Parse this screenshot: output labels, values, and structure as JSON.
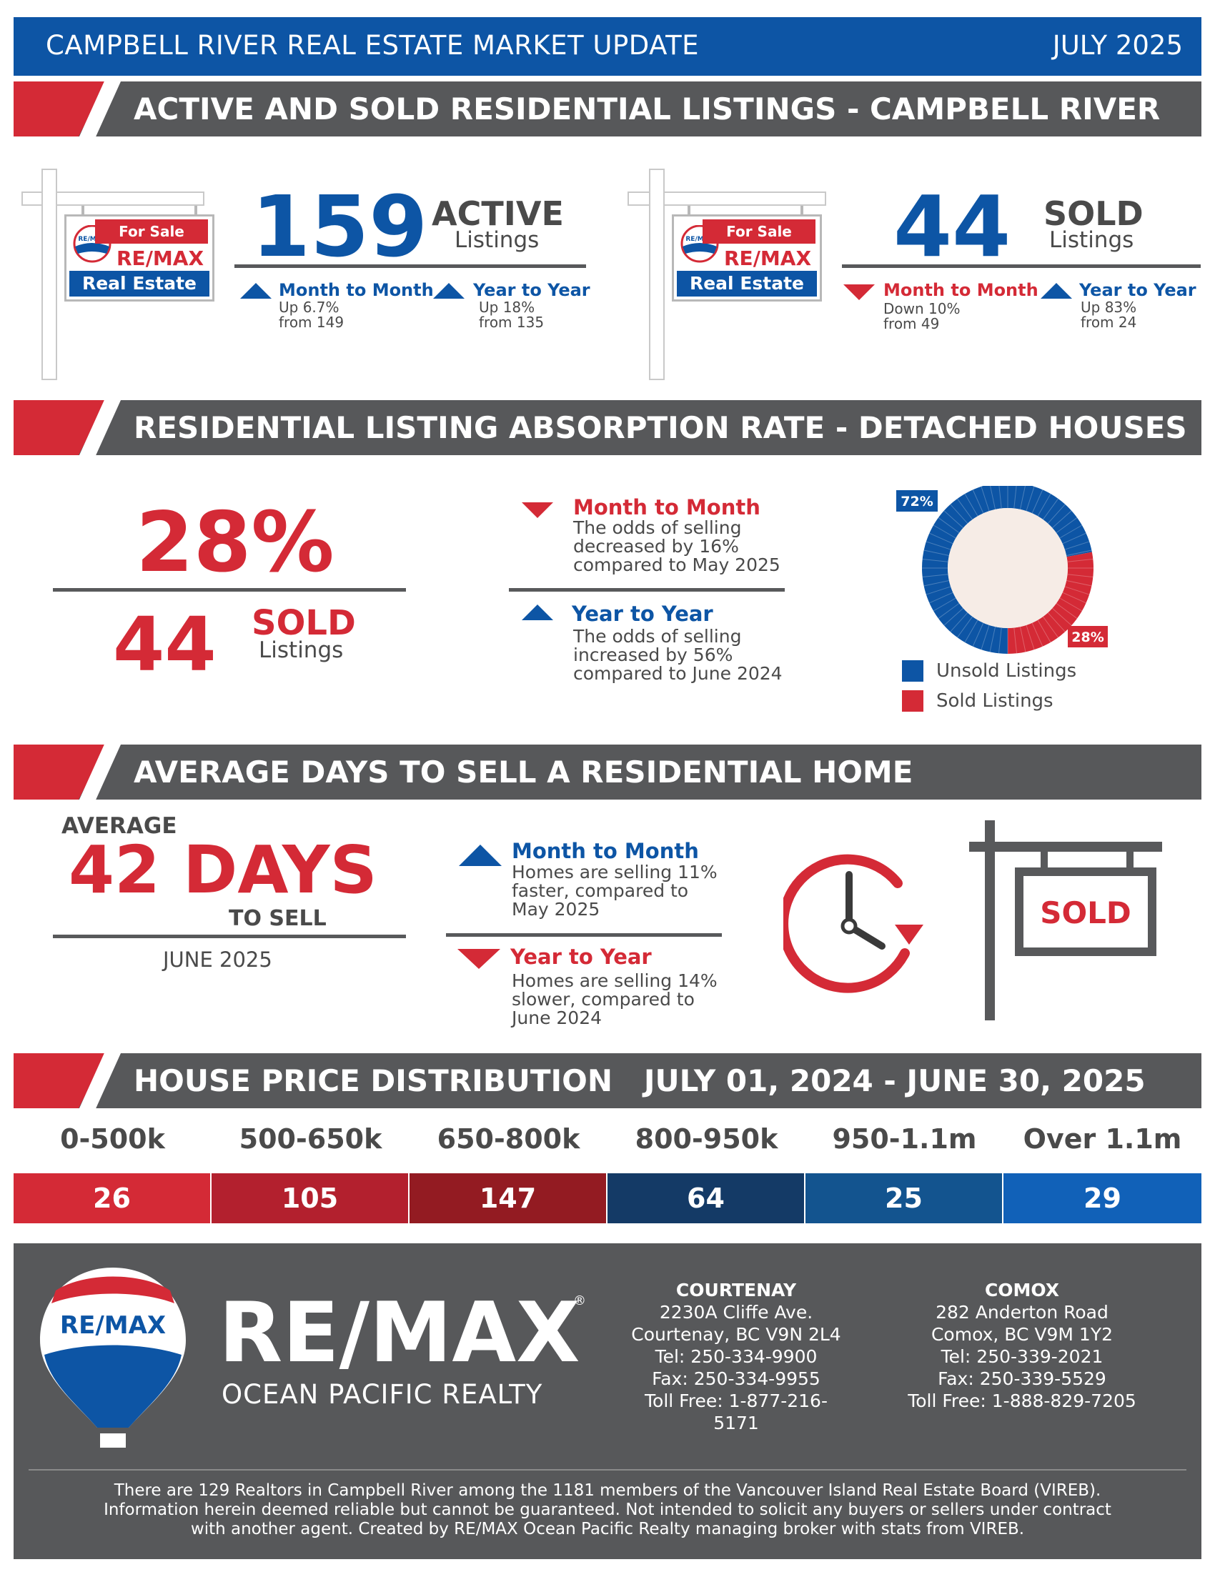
{
  "header": {
    "title": "CAMPBELL RIVER REAL ESTATE MARKET UPDATE",
    "date": "JULY 2025"
  },
  "sections": {
    "listings": "ACTIVE AND SOLD RESIDENTIAL LISTINGS - CAMPBELL RIVER",
    "absorption": "RESIDENTIAL LISTING ABSORPTION RATE - DETACHED HOUSES",
    "days": "AVERAGE DAYS TO SELL A RESIDENTIAL HOME",
    "price": "HOUSE PRICE DISTRIBUTION   JULY 01, 2024 - JUNE 30, 2025"
  },
  "sign": {
    "for_sale": "For Sale",
    "brand": "RE/MAX",
    "real_estate": "Real Estate",
    "balloon_text": "RE/MAX"
  },
  "active": {
    "value": "159",
    "label_top": "ACTIVE",
    "label_bottom": "Listings",
    "mtm": {
      "title": "Month to Month",
      "line1": "Up 6.7%",
      "line2": "from 149",
      "direction": "up"
    },
    "yty": {
      "title": "Year to Year",
      "line1": "Up 18%",
      "line2": "from 135",
      "direction": "up"
    }
  },
  "sold": {
    "value": "44",
    "label_top": "SOLD",
    "label_bottom": "Listings",
    "mtm": {
      "title": "Month to Month",
      "line1": "Down 10%",
      "line2": "from 49",
      "direction": "down"
    },
    "yty": {
      "title": "Year to Year",
      "line1": "Up 83%",
      "line2": "from 24",
      "direction": "up"
    }
  },
  "absorption": {
    "rate": "28%",
    "sold_value": "44",
    "sold_label_top": "SOLD",
    "sold_label_bottom": "Listings",
    "mtm": {
      "title": "Month to Month",
      "line1": "The odds of selling",
      "line2": "decreased by 16%",
      "line3": "compared to May 2025",
      "direction": "down"
    },
    "yty": {
      "title": "Year to Year",
      "line1": "The odds of selling",
      "line2": "increased by 56%",
      "line3": "compared to June 2024",
      "direction": "up"
    },
    "legend_unsold": "Unsold Listings",
    "legend_sold": "Sold Listings",
    "unsold_color": "#0d55a5",
    "sold_color": "#d42a36"
  },
  "chart_data": {
    "type": "pie",
    "categories": [
      "Unsold Listings",
      "Sold Listings"
    ],
    "values": [
      72,
      28
    ],
    "labels": [
      "72%",
      "28%"
    ],
    "colors": [
      "#0d55a5",
      "#d42a36"
    ]
  },
  "days": {
    "average_label": "AVERAGE",
    "value": "42 DAYS",
    "to_sell": "TO SELL",
    "period": "JUNE 2025",
    "mtm": {
      "title": "Month to Month",
      "line1": "Homes are selling 11%",
      "line2": "faster, compared to",
      "line3": "May 2025",
      "direction": "up"
    },
    "yty": {
      "title": "Year to Year",
      "line1": "Homes are selling 14%",
      "line2": "slower, compared to",
      "line3": "June 2024",
      "direction": "down"
    },
    "sold_sign": "SOLD"
  },
  "price": {
    "ranges": [
      {
        "label": "0-500k",
        "count": "26",
        "color": "#d42a36"
      },
      {
        "label": "500-650k",
        "count": "105",
        "color": "#b3202e"
      },
      {
        "label": "650-800k",
        "count": "147",
        "color": "#931b22"
      },
      {
        "label": "800-950k",
        "count": "64",
        "color": "#143a66"
      },
      {
        "label": "950-1.1m",
        "count": "25",
        "color": "#13548f"
      },
      {
        "label": "Over 1.1m",
        "count": "29",
        "color": "#1161b8"
      }
    ]
  },
  "footer": {
    "balloon_text": "RE/MAX",
    "brand": "RE/MAX",
    "registered": "®",
    "tagline": "OCEAN PACIFIC REALTY",
    "courtenay": {
      "name": "COURTENAY",
      "addr1": "2230A Cliffe Ave.",
      "addr2": "Courtenay, BC V9N 2L4",
      "tel": "Tel: 250-334-9900",
      "fax": "Fax: 250-334-9955",
      "toll": "Toll Free: 1-877-216-5171"
    },
    "comox": {
      "name": "COMOX",
      "addr1": "282 Anderton Road",
      "addr2": "Comox, BC V9M 1Y2",
      "tel": "Tel: 250-339-2021",
      "fax": "Fax: 250-339-5529",
      "toll": "Toll Free: 1-888-829-7205"
    },
    "disclaimer1": "There are 129 Realtors in Campbell River among the 1181 members of the Vancouver Island Real Estate Board (VIREB).",
    "disclaimer2": "Information herein deemed reliable but cannot be guaranteed. Not intended to solicit any buyers or sellers under contract",
    "disclaimer3": "with another agent.   Created by RE/MAX Ocean Pacific Realty managing broker with stats from VIREB."
  }
}
